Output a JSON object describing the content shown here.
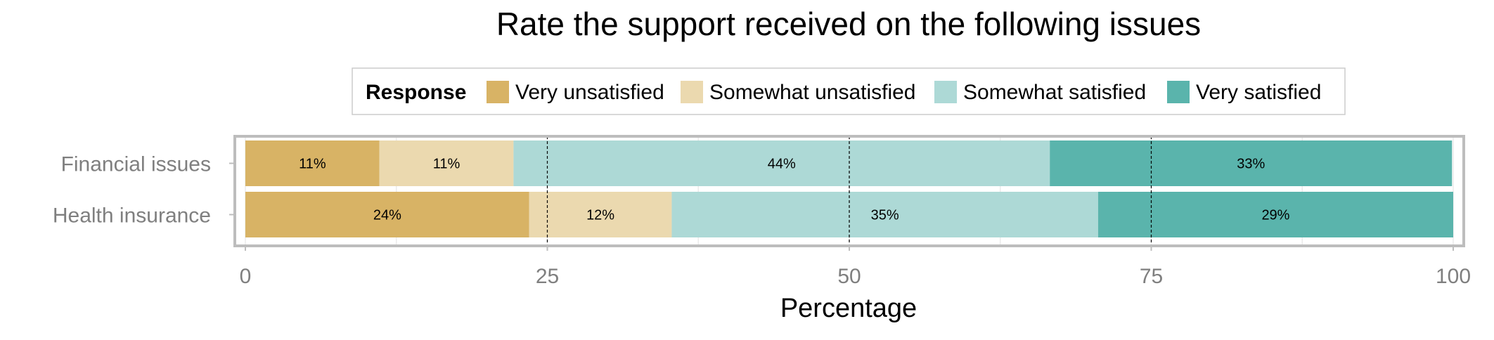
{
  "chart_data": {
    "type": "bar",
    "orientation": "horizontal",
    "stacked": true,
    "title": "Rate the support received on the following issues",
    "xlabel": "Percentage",
    "ylabel": "",
    "xlim": [
      0,
      100
    ],
    "xticks": [
      0,
      25,
      50,
      75,
      100
    ],
    "reference_lines": [
      25,
      50,
      75
    ],
    "grid": true,
    "legend": {
      "title": "Response",
      "position": "top",
      "entries": [
        "Very unsatisfied",
        "Somewhat unsatisfied",
        "Somewhat satisfied",
        "Very satisfied"
      ]
    },
    "categories": [
      "Financial issues",
      "Health insurance"
    ],
    "series": [
      {
        "name": "Very unsatisfied",
        "color": "#D8B365",
        "values": [
          11.1,
          23.5
        ],
        "labels": [
          "11%",
          "24%"
        ]
      },
      {
        "name": "Somewhat unsatisfied",
        "color": "#EBD9AF",
        "values": [
          11.1,
          11.8
        ],
        "labels": [
          "11%",
          "12%"
        ]
      },
      {
        "name": "Somewhat satisfied",
        "color": "#ADD9D6",
        "values": [
          44.4,
          35.3
        ],
        "labels": [
          "44%",
          "35%"
        ]
      },
      {
        "name": "Very satisfied",
        "color": "#5AB4AC",
        "values": [
          33.3,
          29.4
        ],
        "labels": [
          "33%",
          "29%"
        ]
      }
    ]
  }
}
